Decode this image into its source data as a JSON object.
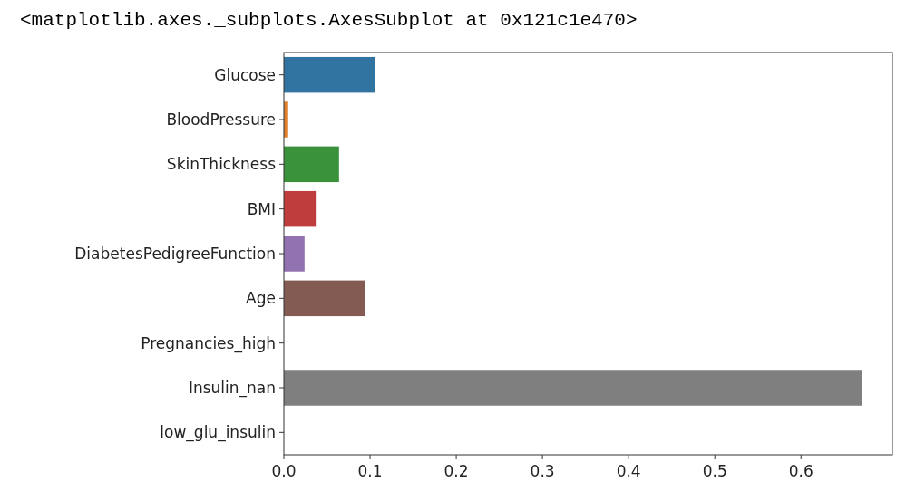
{
  "chart_data": {
    "type": "bar",
    "orientation": "horizontal",
    "annotations": [
      "<matplotlib.axes._subplots.AxesSubplot at 0x121c1e470>"
    ],
    "categories": [
      "Glucose",
      "BloodPressure",
      "SkinThickness",
      "BMI",
      "DiabetesPedigreeFunction",
      "Age",
      "Pregnancies_high",
      "Insulin_nan",
      "low_glu_insulin"
    ],
    "values": [
      0.106,
      0.005,
      0.064,
      0.037,
      0.024,
      0.094,
      0,
      0.671,
      0
    ],
    "colors": [
      "#3274a1",
      "#e1812c",
      "#3a923a",
      "#c03d3e",
      "#9372b2",
      "#845b53",
      "#d684bd",
      "#7f7f7f",
      "#a9aa35"
    ],
    "xlim": [
      0,
      0.706
    ],
    "xticks": [
      {
        "value": 0,
        "label": "0.0"
      },
      {
        "value": 0.1,
        "label": "0.1"
      },
      {
        "value": 0.2,
        "label": "0.2"
      },
      {
        "value": 0.3,
        "label": "0.3"
      },
      {
        "value": 0.4,
        "label": "0.4"
      },
      {
        "value": 0.5,
        "label": "0.5"
      },
      {
        "value": 0.6,
        "label": "0.6"
      }
    ]
  }
}
